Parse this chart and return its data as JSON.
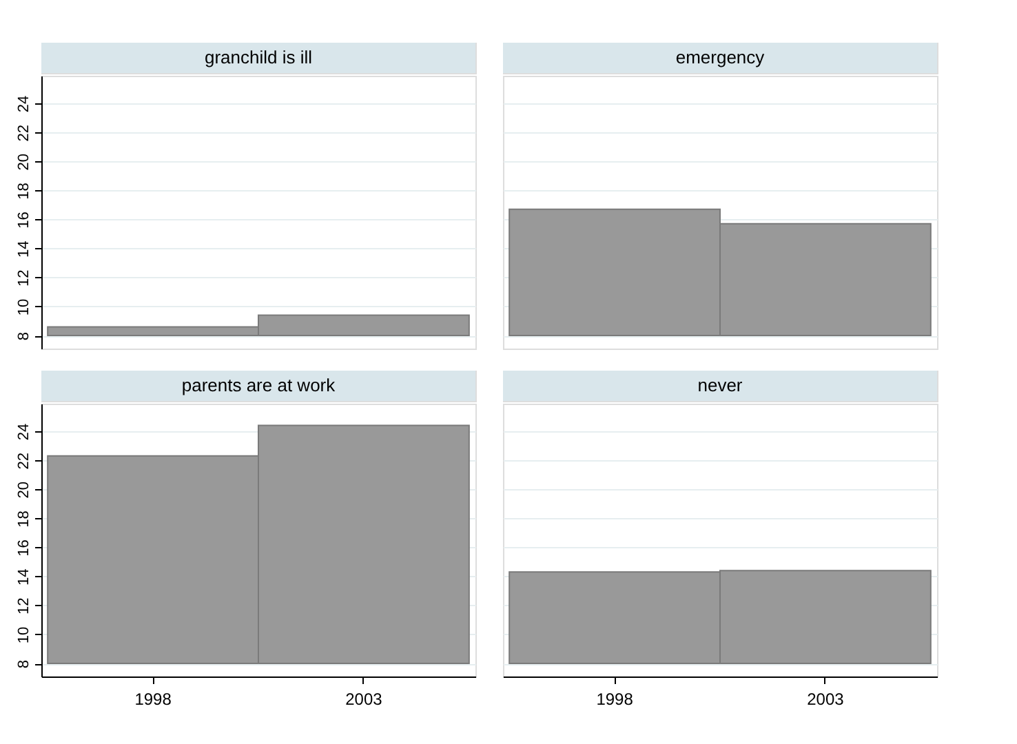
{
  "chart_data": [
    {
      "type": "bar",
      "title": "granchild is ill",
      "categories": [
        "1998",
        "2003"
      ],
      "base": [
        8,
        8
      ],
      "values": [
        0.6,
        1.4
      ],
      "color": "#999999",
      "ylim": [
        7.1,
        25.9
      ],
      "yticks": [
        8,
        10,
        12,
        14,
        16,
        18,
        20,
        22,
        24
      ],
      "grid": "y",
      "tick_labels": "y"
    },
    {
      "type": "bar",
      "title": "emergency",
      "categories": [
        "1998",
        "2003"
      ],
      "base": [
        8,
        8
      ],
      "values": [
        8.7,
        7.7
      ],
      "color": "#999999",
      "ylim": [
        7.1,
        25.9
      ],
      "yticks": [
        8,
        10,
        12,
        14,
        16,
        18,
        20,
        22,
        24
      ],
      "grid": "y",
      "tick_labels": false
    },
    {
      "type": "bar",
      "title": "parents are at work",
      "categories": [
        "1998",
        "2003"
      ],
      "base": [
        8,
        8
      ],
      "values": [
        14.3,
        16.4
      ],
      "color": "#999999",
      "ylim": [
        7.1,
        25.9
      ],
      "yticks": [
        8,
        10,
        12,
        14,
        16,
        18,
        20,
        22,
        24
      ],
      "grid": "y"
    },
    {
      "type": "bar",
      "title": "never",
      "categories": [
        "1998",
        "2003"
      ],
      "base": [
        8,
        8
      ],
      "values": [
        6.3,
        6.4
      ],
      "color": "#999999",
      "ylim": [
        7.1,
        25.9
      ],
      "yticks": [
        8,
        10,
        12,
        14,
        16,
        18,
        20,
        22,
        24
      ],
      "grid": "y",
      "tick_labels": "x"
    }
  ]
}
